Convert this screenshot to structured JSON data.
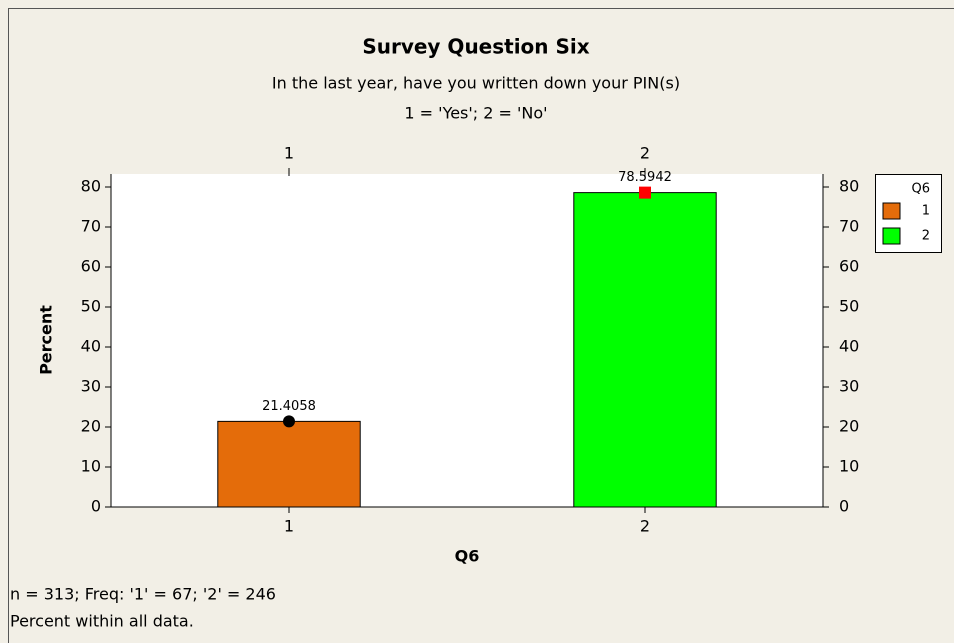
{
  "chart_data": {
    "type": "bar",
    "title": "Survey Question Six",
    "subtitle": [
      "In the last year, have you written down your PIN(s)",
      "1 = 'Yes'; 2 = 'No'"
    ],
    "x_label": "Q6",
    "y_label": "Percent",
    "categories": [
      "1",
      "2"
    ],
    "values": [
      21.4058,
      78.5942
    ],
    "colors": [
      "#e46c0a",
      "#00ff00"
    ],
    "markers": [
      {
        "shape": "circle",
        "color": "#000000"
      },
      {
        "shape": "square",
        "color": "#ff0000"
      }
    ],
    "ylim": [
      0,
      83.25
    ],
    "yticks": [
      0,
      10,
      20,
      30,
      40,
      50,
      60,
      70,
      80
    ],
    "legend": {
      "title": "Q6",
      "position": "right"
    },
    "footnotes": [
      "n = 313; Freq: '1' = 67; '2' = 246",
      "Percent within all data."
    ]
  }
}
